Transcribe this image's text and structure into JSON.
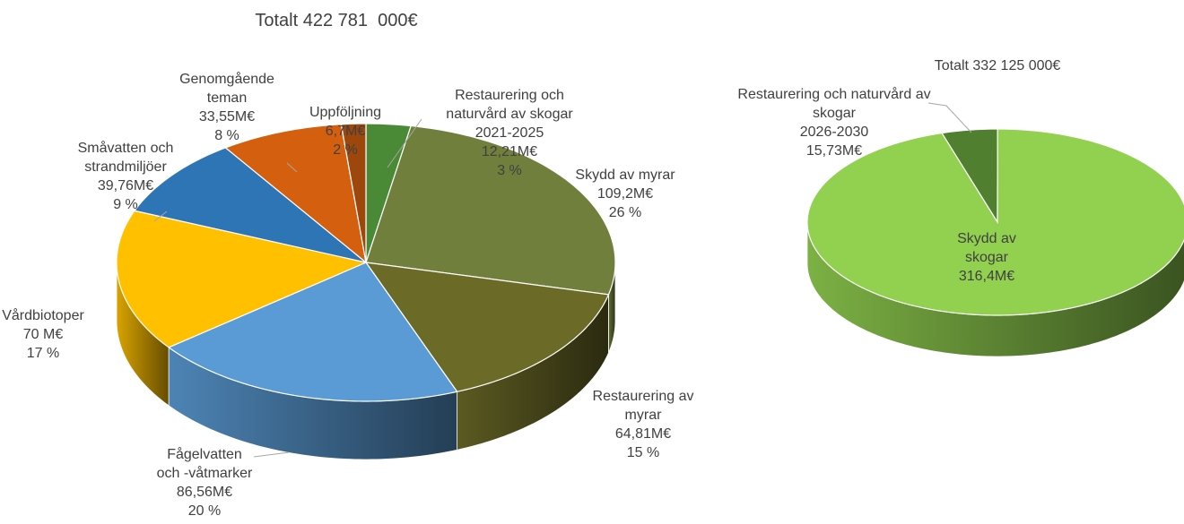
{
  "chart_data": [
    {
      "type": "pie3d",
      "title": "Totalt 422 781  000€",
      "categories": [
        "Restaurering och\nnaturvård av skogar\n2021-2025",
        "Skydd av myrar",
        "Restaurering av\nmyrar",
        "Fågelvatten\noch -våtmarker",
        "Vårdbiotoper",
        "Småvatten och\nstrandmiljöer",
        "Genomgående\nteman",
        "Uppföljning"
      ],
      "values": [
        12.21,
        109.2,
        64.81,
        86.56,
        70,
        39.76,
        33.55,
        6.7
      ],
      "value_labels": [
        "12,21M€",
        "109,2M€",
        "64,81M€",
        "86,56M€",
        "70 M€",
        "39,76M€",
        "33,55M€",
        "6,7M€"
      ],
      "percent_labels": [
        "3 %",
        "26 %",
        "15 %",
        "20 %",
        "17 %",
        "9 %",
        "8 %",
        "2 %"
      ],
      "colors": [
        "#4a8a36",
        "#707f3c",
        "#6b6a27",
        "#5b9bd5",
        "#ffc000",
        "#2e75b6",
        "#d4600f",
        "#9e470c"
      ]
    },
    {
      "type": "pie3d",
      "title": "Totalt 332 125 000€",
      "categories": [
        "Restaurering och naturvård av\nskogar\n2026-2030",
        "Skydd av\nskogar"
      ],
      "values": [
        15.73,
        316.4
      ],
      "value_labels": [
        "15,73M€",
        "316,4M€"
      ],
      "colors": [
        "#4f7f2f",
        "#92d050"
      ]
    }
  ]
}
